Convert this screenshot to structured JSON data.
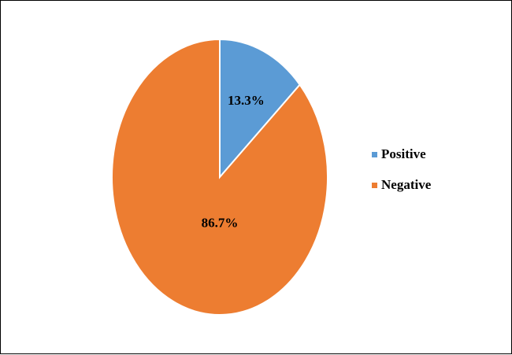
{
  "chart_data": {
    "type": "pie",
    "slices": [
      {
        "label": "Positive",
        "value": 13.3,
        "display": "13.3%",
        "color": "#5B9BD5"
      },
      {
        "label": "Negative",
        "value": 86.7,
        "display": "86.7%",
        "color": "#ED7D31"
      }
    ],
    "start_angle": "12 o'clock",
    "direction": "clockwise",
    "slice_border_color": "#ffffff",
    "legend": {
      "position": "right",
      "entries": [
        "Positive",
        "Negative"
      ]
    }
  }
}
